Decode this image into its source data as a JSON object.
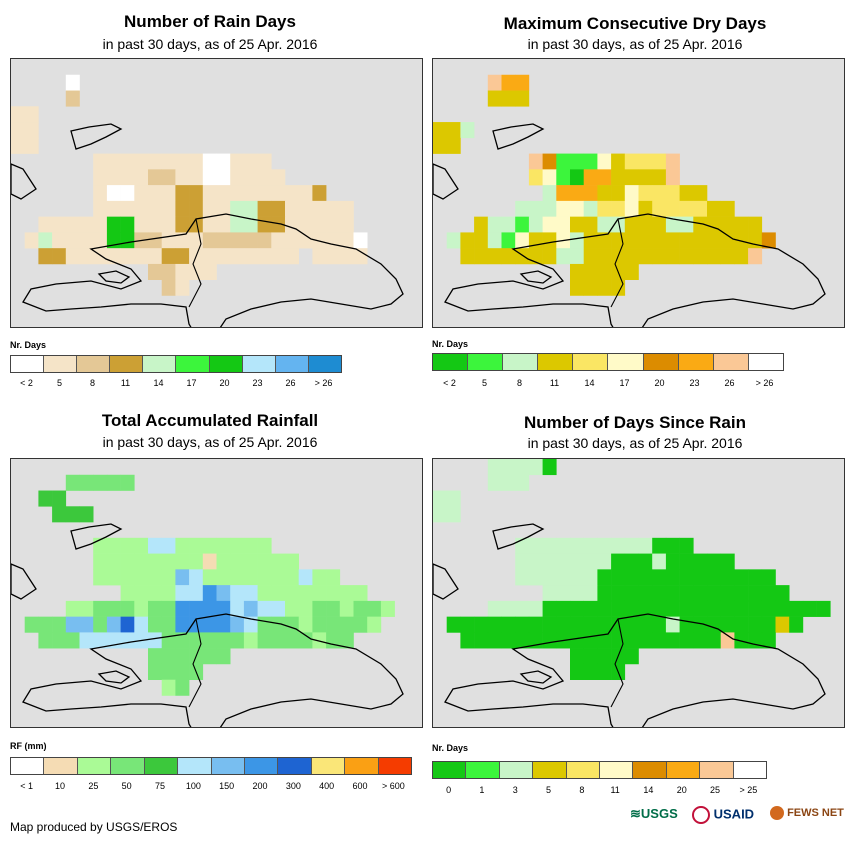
{
  "panels": [
    {
      "key": "rain_days",
      "title": "Number of Rain Days",
      "subtitle": "in past 30 days, as of 25 Apr. 2016",
      "legend": {
        "title": "Nr. Days",
        "colors": [
          "#ffffff",
          "#f5e4c8",
          "#e4c896",
          "#cca034",
          "#c8f5c8",
          "#3cf53c",
          "#14c814",
          "#b4e6fa",
          "#64b4f0",
          "#1e8cd2"
        ],
        "labels": [
          "< 2",
          "5",
          "8",
          "11",
          "14",
          "17",
          "20",
          "23",
          "26",
          "> 26"
        ]
      },
      "palette": {
        "W": "#ffffff",
        "L": "#f5e4c8",
        "T": "#e4c896",
        "O": "#cca034",
        "P": "#c8f5c8",
        "G": "#14c814",
        "g": "#3cf53c"
      },
      "grid": [
        "..............................",
        "....W.........................",
        "....T.........................",
        "LL............................",
        "LL............................",
        "LL............................",
        "......LLLLLLLLWWLLL...........",
        "......LLLLTTLLWWLLLL..........",
        "......LWWLLLOOLLLLLLLLO.......",
        "......LLLLLLOOLLPPOOLLLLL.....",
        "..LLLLLGGLLLOOLLPPOOLLLLL.....",
        ".LPLLLLGGTTLLLTTTTTLLLLLLW....",
        "..OOLLLLLLLOOLLLLLLLL.LLLL....",
        "..........TTLLL...............",
        "...........TL.................",
        "..............................",
        ".............................."
      ]
    },
    {
      "key": "dry_days",
      "title": "Maximum Consecutive Dry Days",
      "subtitle": "in past 30 days, as of 25 Apr. 2016",
      "legend": {
        "title": "Nr. Days",
        "colors": [
          "#14c814",
          "#3cf53c",
          "#c8f5c8",
          "#dcc800",
          "#fae664",
          "#fffac8",
          "#dc8c00",
          "#faaa14",
          "#fac896",
          "#ffffff"
        ],
        "labels": [
          "< 2",
          "5",
          "8",
          "11",
          "14",
          "17",
          "20",
          "23",
          "26",
          "> 26"
        ]
      },
      "palette": {
        "Y": "#dcc800",
        "y": "#fae664",
        "C": "#fffac8",
        "P": "#c8f5c8",
        "G": "#14c814",
        "g": "#3cf53c",
        "O": "#dc8c00",
        "A": "#faaa14",
        "S": "#fac896"
      },
      "grid": [
        "..............................",
        "....SAA.......................",
        "....YYY.......................",
        "..............................",
        "YYP...........................",
        "YY............................",
        ".......SOgggCYyyyS............",
        ".......yCgGAAYYYYS............",
        "........PAAAYYCyyyYY..........",
        "......PPPCCPyyCYyyyyYY........",
        "...YPPgPCCYYPPYYYPPYYYYY......",
        ".PYYPgCYYCPYYYYYYYYYYYYYO.....",
        "..YYYYYYYPPYYYYYYYYYYYYS......",
        "..........YYYYY...............",
        "..........YYYY................",
        "..............................",
        ".............................."
      ]
    },
    {
      "key": "rainfall",
      "title": "Total Accumulated Rainfall",
      "subtitle": "in past 30 days, as of 25 Apr. 2016",
      "legend": {
        "title": "RF (mm)",
        "colors": [
          "#ffffff",
          "#f5dcb4",
          "#aafa96",
          "#78e678",
          "#3cc83c",
          "#b4e6fa",
          "#78bef0",
          "#3c96e6",
          "#1e64d2",
          "#fae678",
          "#faa014",
          "#f53c00"
        ],
        "labels": [
          "< 1",
          "10",
          "25",
          "50",
          "75",
          "100",
          "150",
          "200",
          "300",
          "400",
          "600",
          "> 600"
        ]
      },
      "palette": {
        "l": "#aafa96",
        "m": "#78e678",
        "d": "#3cc83c",
        "c": "#b4e6fa",
        "s": "#78bef0",
        "b": "#3c96e6",
        "B": "#1e64d2",
        "t": "#f5dcb4"
      },
      "grid": [
        "..............................",
        "....mmmmm.....................",
        "..dd..........................",
        "...ddd........................",
        "..............................",
        "......llllcclllllll...........",
        "......lllllllltllllll.........",
        "......llllllsclllllllcll......",
        "........llllccbsccllllllll....",
        "....llmmmlmmbbbbcsccllmmlmml..",
        ".mmmssmsBcmmbbbbscmmmlmmmml...",
        "..mmmccccccmmmmmmlmmmmlmm.....",
        "..........mmmmmm..............",
        "..........mmmm................",
        "...........lm.................",
        "..............................",
        ".............................."
      ]
    },
    {
      "key": "since_rain",
      "title": "Number of Days Since Rain",
      "subtitle": "in past 30 days, as of 25 Apr. 2016",
      "legend": {
        "title": "Nr. Days",
        "colors": [
          "#14c814",
          "#3cf53c",
          "#c8f5c8",
          "#dcc800",
          "#fae664",
          "#fffac8",
          "#dc8c00",
          "#faaa14",
          "#fac896",
          "#ffffff"
        ],
        "labels": [
          "0",
          "1",
          "3",
          "5",
          "8",
          "11",
          "14",
          "20",
          "25",
          "> 25"
        ]
      },
      "palette": {
        "G": "#14c814",
        "g": "#3cf53c",
        "P": "#c8f5c8",
        "Y": "#dcc800",
        "S": "#fac896"
      },
      "grid": [
        "....PPPPG.....................",
        "....PPP.......................",
        "PP............................",
        "PP............................",
        "..............................",
        "......PPPPPPPPPPGGG...........",
        "......PPPPPPPGGGPGGGGG........",
        "......PPPPPPGGGGGGGGGGGGG.....",
        "........PPPPGGGGGGGGGGGGGG....",
        "....PPPPGGGGGGGGGGGGGGGGGGGGG.",
        ".GGGGGGGGGGGGGGGGPGGGGGGGYG...",
        "..GGGGGGGGGGGGGGGGGGGSGGG.....",
        "..........GGGGG...............",
        "..........GGGG................",
        "..............................",
        "..............................",
        ".............................."
      ]
    }
  ],
  "footer": "Map produced by USGS/EROS",
  "logos": [
    "USGS",
    "USAID",
    "FEWS NET"
  ]
}
